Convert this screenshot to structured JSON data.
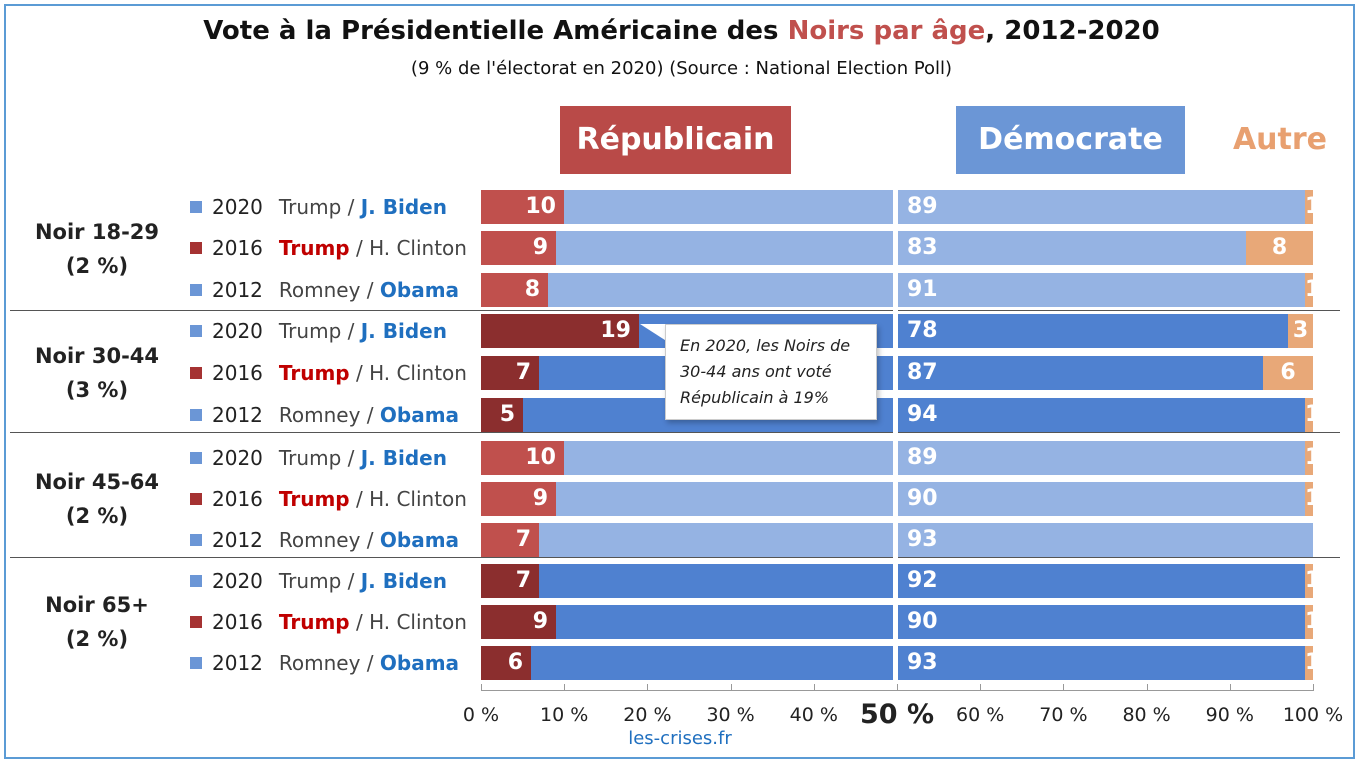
{
  "title": {
    "part1": "Vote à la Présidentielle Américaine des ",
    "highlight": "Noirs par âge",
    "part2": ", 2012-2020"
  },
  "subtitle": "(9 % de l'électorat en 2020) (Source : National Election Poll)",
  "headers": {
    "republican": "Républicain",
    "democrat": "Démocrate",
    "other": "Autre"
  },
  "callout": "En 2020, les Noirs de 30-44 ans ont voté Républicain à 19%",
  "source": "les-crises.fr",
  "colors": {
    "rep_light": "#c0504d",
    "rep_dark": "#8b2e2e",
    "dem_light": "#95b3e3",
    "dem_dark": "#4f81d0",
    "other": "#e8a878",
    "sq_blue": "#6b96d6",
    "sq_red": "#a53232"
  },
  "chart_data": {
    "type": "bar",
    "orientation": "horizontal",
    "stacked": true,
    "xlim": [
      0,
      100
    ],
    "x_ticks": [
      "0 %",
      "10 %",
      "20 %",
      "30 %",
      "40 %",
      "50 %",
      "60 %",
      "70 %",
      "80 %",
      "90 %",
      "100 %"
    ],
    "groups": [
      {
        "label": "Noir 18-29",
        "share": "(2 %)",
        "style": "light",
        "rows": [
          {
            "year": "2020",
            "rep_candidate": "Trump",
            "dem_candidate": "J. Biden",
            "winner": "dem",
            "republican": 10,
            "democrat": 89,
            "other": 1
          },
          {
            "year": "2016",
            "rep_candidate": "Trump",
            "dem_candidate": "H. Clinton",
            "winner": "rep",
            "republican": 9,
            "democrat": 83,
            "other": 8
          },
          {
            "year": "2012",
            "rep_candidate": "Romney",
            "dem_candidate": "Obama",
            "winner": "dem",
            "republican": 8,
            "democrat": 91,
            "other": 1
          }
        ]
      },
      {
        "label": "Noir 30-44",
        "share": "(3 %)",
        "style": "dark",
        "rows": [
          {
            "year": "2020",
            "rep_candidate": "Trump",
            "dem_candidate": "J. Biden",
            "winner": "dem",
            "republican": 19,
            "democrat": 78,
            "other": 3
          },
          {
            "year": "2016",
            "rep_candidate": "Trump",
            "dem_candidate": "H. Clinton",
            "winner": "rep",
            "republican": 7,
            "democrat": 87,
            "other": 6
          },
          {
            "year": "2012",
            "rep_candidate": "Romney",
            "dem_candidate": "Obama",
            "winner": "dem",
            "republican": 5,
            "democrat": 94,
            "other": 1
          }
        ]
      },
      {
        "label": "Noir 45-64",
        "share": "(2 %)",
        "style": "light",
        "rows": [
          {
            "year": "2020",
            "rep_candidate": "Trump",
            "dem_candidate": "J. Biden",
            "winner": "dem",
            "republican": 10,
            "democrat": 89,
            "other": 1
          },
          {
            "year": "2016",
            "rep_candidate": "Trump",
            "dem_candidate": "H. Clinton",
            "winner": "rep",
            "republican": 9,
            "democrat": 90,
            "other": 1
          },
          {
            "year": "2012",
            "rep_candidate": "Romney",
            "dem_candidate": "Obama",
            "winner": "dem",
            "republican": 7,
            "democrat": 93,
            "other": 0
          }
        ]
      },
      {
        "label": "Noir 65+",
        "share": "(2 %)",
        "style": "dark",
        "rows": [
          {
            "year": "2020",
            "rep_candidate": "Trump",
            "dem_candidate": "J. Biden",
            "winner": "dem",
            "republican": 7,
            "democrat": 92,
            "other": 1
          },
          {
            "year": "2016",
            "rep_candidate": "Trump",
            "dem_candidate": "H. Clinton",
            "winner": "rep",
            "republican": 9,
            "democrat": 90,
            "other": 1
          },
          {
            "year": "2012",
            "rep_candidate": "Romney",
            "dem_candidate": "Obama",
            "winner": "dem",
            "republican": 6,
            "democrat": 93,
            "other": 1
          }
        ]
      }
    ]
  }
}
